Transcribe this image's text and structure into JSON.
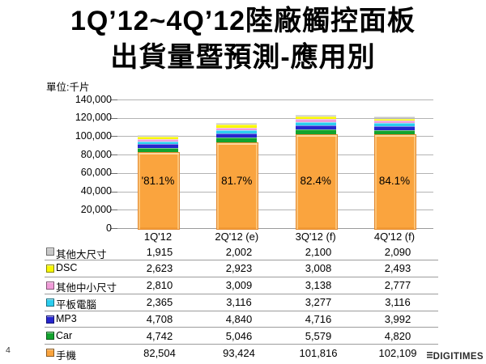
{
  "slide": {
    "title_line1": "1Q’12~4Q’12陸廠觸控面板",
    "title_line2": "出貨量暨預測-應用別",
    "unit_label": "單位:千片",
    "page_number": "4",
    "logo_text": "DIGITIMES"
  },
  "chart_data": {
    "type": "bar",
    "stacked": true,
    "title": "1Q’12~4Q’12陸廠觸控面板出貨量暨預測-應用別",
    "ylabel": "單位:千片",
    "xlabel": "",
    "ylim": [
      0,
      140000
    ],
    "ytick_step": 20000,
    "ytick_labels": [
      "0",
      "20,000",
      "40,000",
      "60,000",
      "80,000",
      "100,000",
      "120,000",
      "140,000"
    ],
    "grid": true,
    "legend_position": "table-left",
    "categories": [
      "1Q'12",
      "2Q'12 (e)",
      "3Q'12 (f)",
      "4Q'12 (f)"
    ],
    "series": [
      {
        "name": "手機",
        "color": "#FAA43E",
        "values": [
          82504,
          93424,
          101816,
          102109
        ]
      },
      {
        "name": "Car",
        "color": "#12A32E",
        "values": [
          4742,
          5046,
          5579,
          4820
        ]
      },
      {
        "name": "MP3",
        "color": "#2626CE",
        "values": [
          4708,
          4840,
          4716,
          3992
        ]
      },
      {
        "name": "平板電腦",
        "color": "#2BCDEF",
        "values": [
          2365,
          3116,
          3277,
          3116
        ]
      },
      {
        "name": "其他中小尺寸",
        "color": "#F09BD8",
        "values": [
          2810,
          3009,
          3138,
          2777
        ]
      },
      {
        "name": "DSC",
        "color": "#F8F800",
        "values": [
          2623,
          2923,
          3008,
          2493
        ]
      },
      {
        "name": "其他大尺寸",
        "color": "#C8C8C8",
        "values": [
          1915,
          2002,
          2100,
          2090
        ]
      }
    ],
    "bar_labels": [
      "'81.1%",
      "81.7%",
      "82.4%",
      "84.1%"
    ]
  },
  "table": {
    "rows": [
      {
        "label": "其他大尺寸",
        "color": "#C8C8C8",
        "values": [
          "1,915",
          "2,002",
          "2,100",
          "2,090"
        ]
      },
      {
        "label": "DSC",
        "color": "#F8F800",
        "values": [
          "2,623",
          "2,923",
          "3,008",
          "2,493"
        ]
      },
      {
        "label": "其他中小尺寸",
        "color": "#F09BD8",
        "values": [
          "2,810",
          "3,009",
          "3,138",
          "2,777"
        ]
      },
      {
        "label": "平板電腦",
        "color": "#2BCDEF",
        "values": [
          "2,365",
          "3,116",
          "3,277",
          "3,116"
        ]
      },
      {
        "label": "MP3",
        "color": "#2626CE",
        "values": [
          "4,708",
          "4,840",
          "4,716",
          "3,992"
        ]
      },
      {
        "label": "Car",
        "color": "#12A32E",
        "values": [
          "4,742",
          "5,046",
          "5,579",
          "4,820"
        ]
      },
      {
        "label": "手機",
        "color": "#FAA43E",
        "values": [
          "82,504",
          "93,424",
          "101,816",
          "102,109"
        ]
      }
    ]
  }
}
